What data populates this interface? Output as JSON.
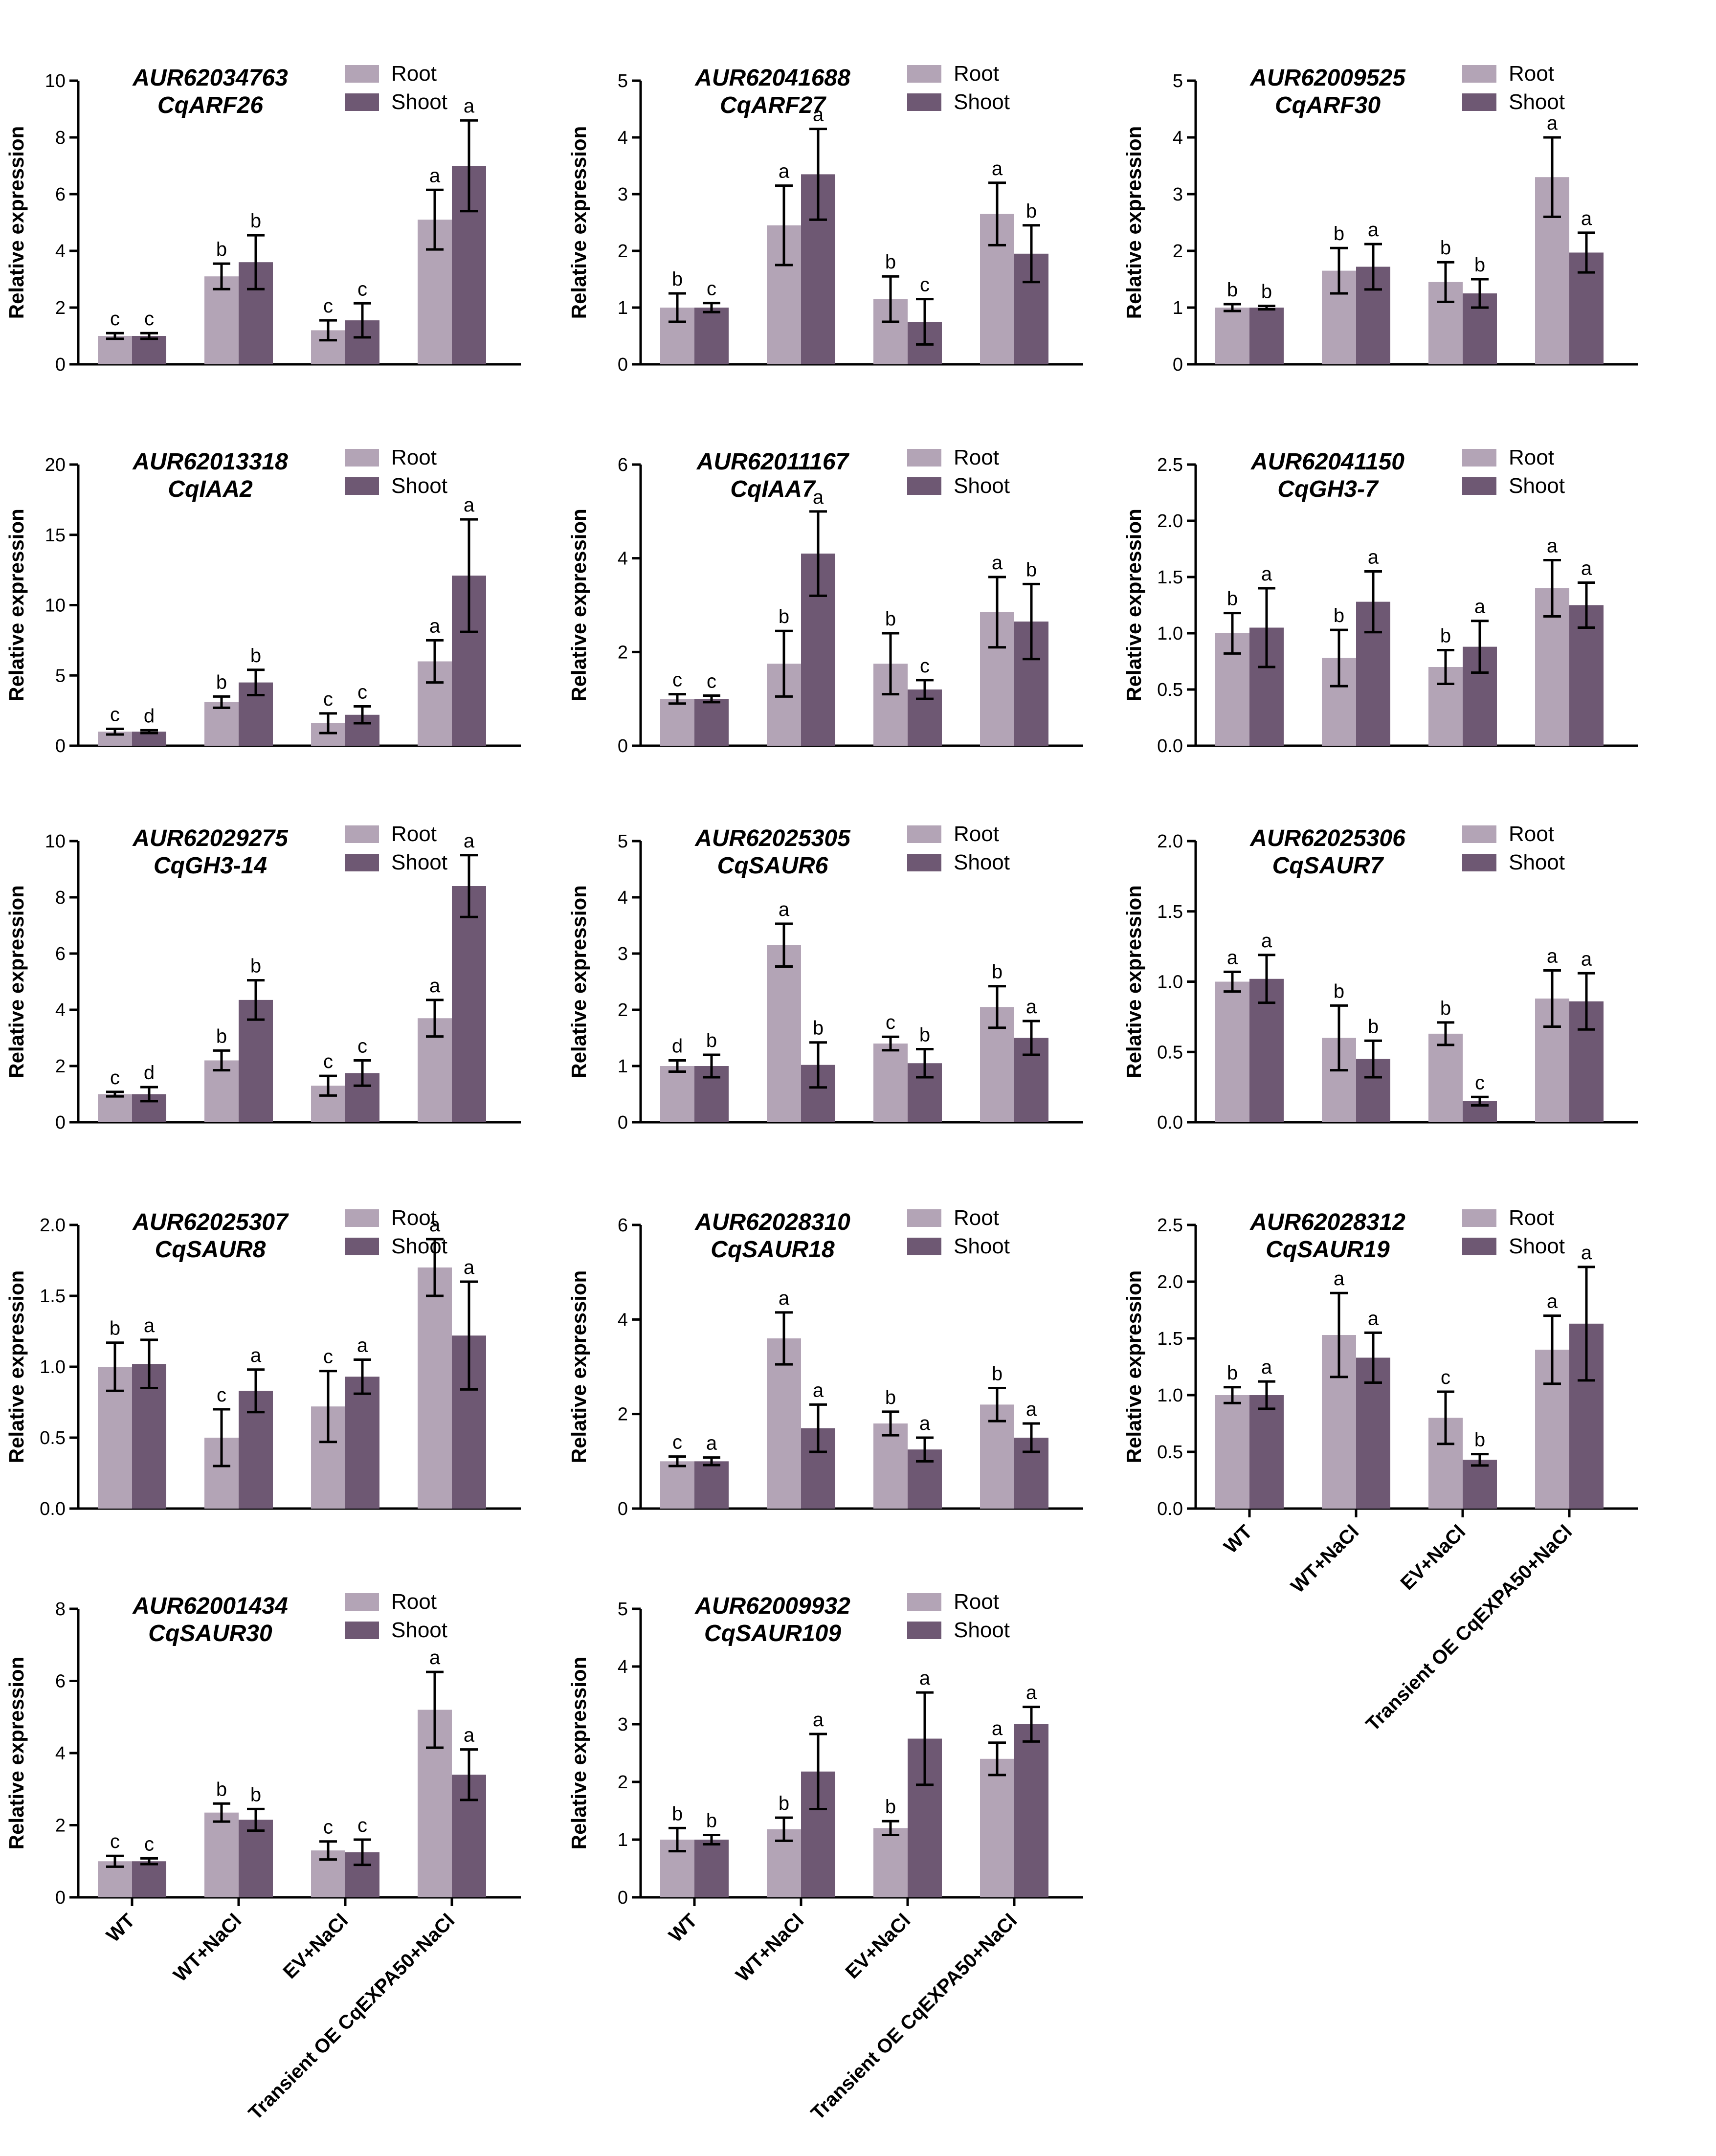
{
  "colors": {
    "root": "#b3a4b6",
    "shoot": "#6e5873",
    "axis": "#000000"
  },
  "legend": {
    "root": "Root",
    "shoot": "Shoot"
  },
  "ylabel": "Relative expression",
  "categories": [
    "WT",
    "WT+NaCl",
    "EV+NaCl",
    "Transient OE CqEXPA50+NaCl"
  ],
  "chart_data": [
    {
      "type": "bar",
      "title": "AUR62034763",
      "subtitle": "CqARF26",
      "ylim": [
        0,
        10
      ],
      "yticks": [
        "0",
        "2",
        "4",
        "6",
        "8",
        "10"
      ],
      "series": [
        {
          "name": "Root",
          "values": [
            1.0,
            3.1,
            1.2,
            5.1
          ],
          "errors": [
            0.1,
            0.45,
            0.35,
            1.05
          ],
          "letters": [
            "c",
            "b",
            "c",
            "a"
          ]
        },
        {
          "name": "Shoot",
          "values": [
            1.0,
            3.6,
            1.55,
            7.0
          ],
          "errors": [
            0.1,
            0.95,
            0.6,
            1.6
          ],
          "letters": [
            "c",
            "b",
            "c",
            "a"
          ]
        }
      ]
    },
    {
      "type": "bar",
      "title": "AUR62041688",
      "subtitle": "CqARF27",
      "ylim": [
        0,
        5
      ],
      "yticks": [
        "0",
        "1",
        "2",
        "3",
        "4",
        "5"
      ],
      "series": [
        {
          "name": "Root",
          "values": [
            1.0,
            2.45,
            1.15,
            2.65
          ],
          "errors": [
            0.25,
            0.7,
            0.4,
            0.55
          ],
          "letters": [
            "b",
            "a",
            "b",
            "a"
          ]
        },
        {
          "name": "Shoot",
          "values": [
            1.0,
            3.35,
            0.75,
            1.95
          ],
          "errors": [
            0.08,
            0.8,
            0.4,
            0.5
          ],
          "letters": [
            "c",
            "a",
            "c",
            "b"
          ]
        }
      ]
    },
    {
      "type": "bar",
      "title": "AUR62009525",
      "subtitle": "CqARF30",
      "ylim": [
        0,
        5
      ],
      "yticks": [
        "0",
        "1",
        "2",
        "3",
        "4",
        "5"
      ],
      "series": [
        {
          "name": "Root",
          "values": [
            1.0,
            1.65,
            1.45,
            3.3
          ],
          "errors": [
            0.06,
            0.4,
            0.35,
            0.7
          ],
          "letters": [
            "b",
            "b",
            "b",
            "a"
          ]
        },
        {
          "name": "Shoot",
          "values": [
            1.0,
            1.72,
            1.25,
            1.97
          ],
          "errors": [
            0.03,
            0.4,
            0.25,
            0.35
          ],
          "letters": [
            "b",
            "a",
            "b",
            "a"
          ]
        }
      ]
    },
    {
      "type": "bar",
      "title": "AUR62013318",
      "subtitle": "CqIAA2",
      "ylim": [
        0,
        20
      ],
      "yticks": [
        "0",
        "5",
        "10",
        "15",
        "20"
      ],
      "series": [
        {
          "name": "Root",
          "values": [
            1.0,
            3.1,
            1.6,
            6.0
          ],
          "errors": [
            0.2,
            0.4,
            0.7,
            1.5
          ],
          "letters": [
            "c",
            "b",
            "c",
            "a"
          ]
        },
        {
          "name": "Shoot",
          "values": [
            1.0,
            4.5,
            2.2,
            12.1
          ],
          "errors": [
            0.1,
            0.9,
            0.6,
            4.0
          ],
          "letters": [
            "d",
            "b",
            "c",
            "a"
          ]
        }
      ]
    },
    {
      "type": "bar",
      "title": "AUR62011167",
      "subtitle": "CqIAA7",
      "ylim": [
        0,
        6
      ],
      "yticks": [
        "0",
        "2",
        "4",
        "6"
      ],
      "series": [
        {
          "name": "Root",
          "values": [
            1.0,
            1.75,
            1.75,
            2.85
          ],
          "errors": [
            0.1,
            0.7,
            0.65,
            0.75
          ],
          "letters": [
            "c",
            "b",
            "b",
            "a"
          ]
        },
        {
          "name": "Shoot",
          "values": [
            1.0,
            4.1,
            1.2,
            2.65
          ],
          "errors": [
            0.07,
            0.9,
            0.2,
            0.8
          ],
          "letters": [
            "c",
            "a",
            "c",
            "b"
          ]
        }
      ]
    },
    {
      "type": "bar",
      "title": "AUR62041150",
      "subtitle": "CqGH3-7",
      "ylim": [
        0,
        2.5
      ],
      "yticks": [
        "0.0",
        "0.5",
        "1.0",
        "1.5",
        "2.0",
        "2.5"
      ],
      "series": [
        {
          "name": "Root",
          "values": [
            1.0,
            0.78,
            0.7,
            1.4
          ],
          "errors": [
            0.18,
            0.25,
            0.15,
            0.25
          ],
          "letters": [
            "b",
            "b",
            "b",
            "a"
          ]
        },
        {
          "name": "Shoot",
          "values": [
            1.05,
            1.28,
            0.88,
            1.25
          ],
          "errors": [
            0.35,
            0.27,
            0.23,
            0.2
          ],
          "letters": [
            "a",
            "a",
            "a",
            "a"
          ]
        }
      ]
    },
    {
      "type": "bar",
      "title": "AUR62029275",
      "subtitle": "CqGH3-14",
      "ylim": [
        0,
        10
      ],
      "yticks": [
        "0",
        "2",
        "4",
        "6",
        "8",
        "10"
      ],
      "series": [
        {
          "name": "Root",
          "values": [
            1.0,
            2.2,
            1.3,
            3.7
          ],
          "errors": [
            0.08,
            0.35,
            0.35,
            0.65
          ],
          "letters": [
            "c",
            "b",
            "c",
            "a"
          ]
        },
        {
          "name": "Shoot",
          "values": [
            1.0,
            4.35,
            1.75,
            8.4
          ],
          "errors": [
            0.25,
            0.7,
            0.45,
            1.1
          ],
          "letters": [
            "d",
            "b",
            "c",
            "a"
          ]
        }
      ]
    },
    {
      "type": "bar",
      "title": "AUR62025305",
      "subtitle": "CqSAUR6",
      "ylim": [
        0,
        5
      ],
      "yticks": [
        "0",
        "1",
        "2",
        "3",
        "4",
        "5"
      ],
      "series": [
        {
          "name": "Root",
          "values": [
            1.0,
            3.15,
            1.4,
            2.05
          ],
          "errors": [
            0.1,
            0.38,
            0.12,
            0.37
          ],
          "letters": [
            "d",
            "a",
            "c",
            "b"
          ]
        },
        {
          "name": "Shoot",
          "values": [
            1.0,
            1.02,
            1.05,
            1.5
          ],
          "errors": [
            0.2,
            0.4,
            0.25,
            0.3
          ],
          "letters": [
            "b",
            "b",
            "b",
            "a"
          ]
        }
      ]
    },
    {
      "type": "bar",
      "title": "AUR62025306",
      "subtitle": "CqSAUR7",
      "ylim": [
        0,
        2.0
      ],
      "yticks": [
        "0.0",
        "0.5",
        "1.0",
        "1.5",
        "2.0"
      ],
      "series": [
        {
          "name": "Root",
          "values": [
            1.0,
            0.6,
            0.63,
            0.88
          ],
          "errors": [
            0.07,
            0.23,
            0.08,
            0.2
          ],
          "letters": [
            "a",
            "b",
            "b",
            "a"
          ]
        },
        {
          "name": "Shoot",
          "values": [
            1.02,
            0.45,
            0.15,
            0.86
          ],
          "errors": [
            0.17,
            0.13,
            0.03,
            0.2
          ],
          "letters": [
            "a",
            "b",
            "c",
            "a"
          ]
        }
      ]
    },
    {
      "type": "bar",
      "title": "AUR62025307",
      "subtitle": "CqSAUR8",
      "ylim": [
        0,
        2.0
      ],
      "yticks": [
        "0.0",
        "0.5",
        "1.0",
        "1.5",
        "2.0"
      ],
      "series": [
        {
          "name": "Root",
          "values": [
            1.0,
            0.5,
            0.72,
            1.7
          ],
          "errors": [
            0.17,
            0.2,
            0.25,
            0.2
          ],
          "letters": [
            "b",
            "c",
            "c",
            "a"
          ]
        },
        {
          "name": "Shoot",
          "values": [
            1.02,
            0.83,
            0.93,
            1.22
          ],
          "errors": [
            0.17,
            0.15,
            0.12,
            0.38
          ],
          "letters": [
            "a",
            "a",
            "a",
            "a"
          ]
        }
      ]
    },
    {
      "type": "bar",
      "title": "AUR62028310",
      "subtitle": "CqSAUR18",
      "ylim": [
        0,
        6
      ],
      "yticks": [
        "0",
        "2",
        "4",
        "6"
      ],
      "series": [
        {
          "name": "Root",
          "values": [
            1.0,
            3.6,
            1.8,
            2.2
          ],
          "errors": [
            0.1,
            0.55,
            0.25,
            0.35
          ],
          "letters": [
            "c",
            "a",
            "b",
            "b"
          ]
        },
        {
          "name": "Shoot",
          "values": [
            1.0,
            1.7,
            1.25,
            1.5
          ],
          "errors": [
            0.08,
            0.5,
            0.25,
            0.3
          ],
          "letters": [
            "a",
            "a",
            "a",
            "a"
          ]
        }
      ]
    },
    {
      "type": "bar",
      "title": "AUR62028312",
      "subtitle": "CqSAUR19",
      "ylim": [
        0,
        2.5
      ],
      "yticks": [
        "0.0",
        "0.5",
        "1.0",
        "1.5",
        "2.0",
        "2.5"
      ],
      "series": [
        {
          "name": "Root",
          "values": [
            1.0,
            1.53,
            0.8,
            1.4
          ],
          "errors": [
            0.07,
            0.37,
            0.23,
            0.3
          ],
          "letters": [
            "b",
            "a",
            "c",
            "a"
          ]
        },
        {
          "name": "Shoot",
          "values": [
            1.0,
            1.33,
            0.43,
            1.63
          ],
          "errors": [
            0.12,
            0.22,
            0.05,
            0.5
          ],
          "letters": [
            "a",
            "a",
            "b",
            "a"
          ]
        }
      ]
    },
    {
      "type": "bar",
      "title": "AUR62001434",
      "subtitle": "CqSAUR30",
      "ylim": [
        0,
        8
      ],
      "yticks": [
        "0",
        "2",
        "4",
        "6",
        "8"
      ],
      "series": [
        {
          "name": "Root",
          "values": [
            1.0,
            2.35,
            1.3,
            5.2
          ],
          "errors": [
            0.15,
            0.25,
            0.25,
            1.05
          ],
          "letters": [
            "c",
            "b",
            "c",
            "a"
          ]
        },
        {
          "name": "Shoot",
          "values": [
            1.0,
            2.15,
            1.25,
            3.4
          ],
          "errors": [
            0.08,
            0.3,
            0.35,
            0.7
          ],
          "letters": [
            "c",
            "b",
            "c",
            "a"
          ]
        }
      ]
    },
    {
      "type": "bar",
      "title": "AUR62009932",
      "subtitle": "CqSAUR109",
      "ylim": [
        0,
        5
      ],
      "yticks": [
        "0",
        "1",
        "2",
        "3",
        "4",
        "5"
      ],
      "series": [
        {
          "name": "Root",
          "values": [
            1.0,
            1.18,
            1.2,
            2.4
          ],
          "errors": [
            0.2,
            0.2,
            0.12,
            0.28
          ],
          "letters": [
            "b",
            "b",
            "b",
            "a"
          ]
        },
        {
          "name": "Shoot",
          "values": [
            1.0,
            2.18,
            2.75,
            3.0
          ],
          "errors": [
            0.08,
            0.65,
            0.8,
            0.3
          ],
          "letters": [
            "b",
            "a",
            "a",
            "a"
          ]
        }
      ]
    }
  ]
}
